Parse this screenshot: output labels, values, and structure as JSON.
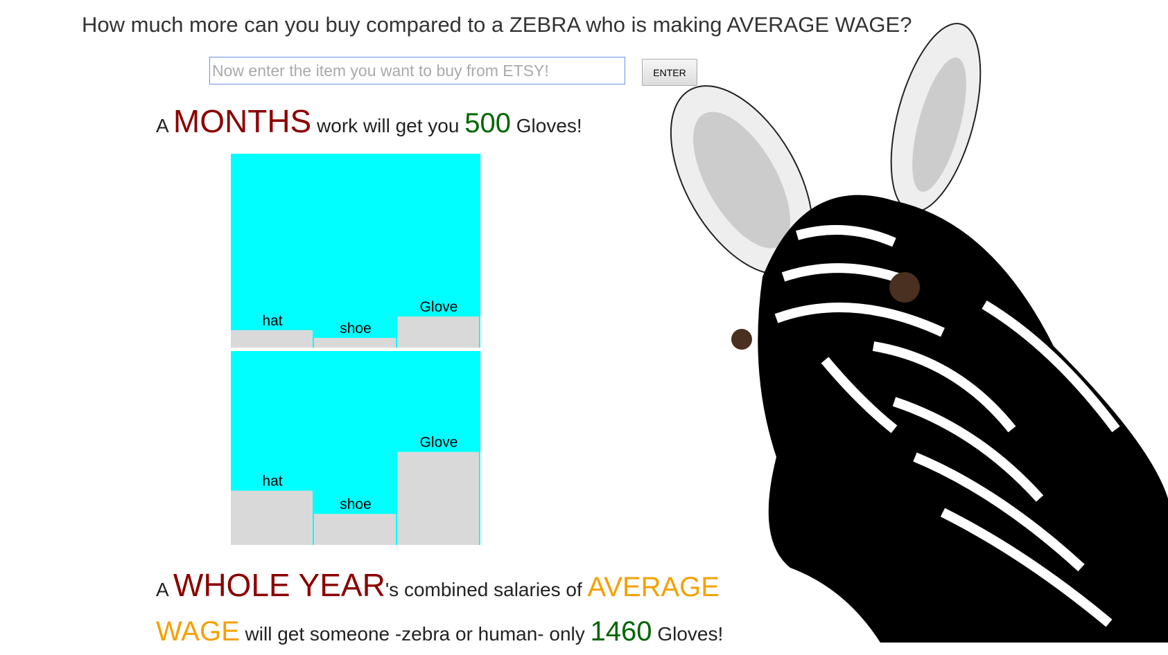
{
  "header": {
    "title": "How much more can you buy compared to a ZEBRA who is making AVERAGE WAGE?"
  },
  "form": {
    "placeholder": "Now enter the item you want to buy from ETSY!",
    "button": "ENTER"
  },
  "sentence1": {
    "a": "A",
    "period": "MONTHS",
    "middle": "work will get you",
    "count": 500,
    "item": "Gloves!"
  },
  "chart_data": [
    {
      "type": "bar",
      "categories": [
        "hat",
        "shoe",
        "Glove"
      ],
      "values": [
        9,
        5,
        16
      ],
      "color": "#d9d9d9",
      "background": "#00ffff",
      "ylim": [
        0,
        100
      ]
    },
    {
      "type": "bar",
      "categories": [
        "hat",
        "shoe",
        "Glove"
      ],
      "values": [
        28,
        16,
        48
      ],
      "color": "#d9d9d9",
      "background": "#00ffff",
      "ylim": [
        0,
        100
      ]
    }
  ],
  "sentence2": {
    "a": "A",
    "period": "WHOLE YEAR",
    "middle": "'s combined salaries of",
    "wage": "AVERAGE WAGE",
    "tail": "will get someone -zebra or human- only",
    "count": 1460,
    "item": "Gloves!"
  }
}
